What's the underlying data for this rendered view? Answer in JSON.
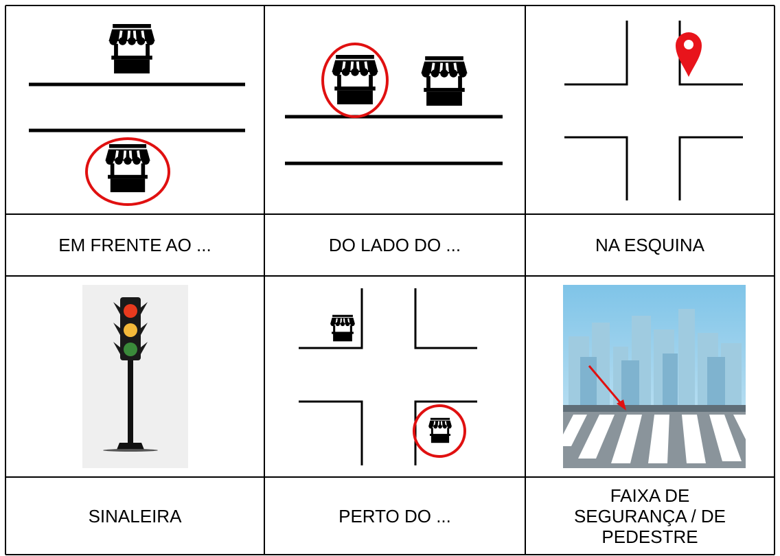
{
  "table": {
    "rows": [
      [
        "EM FRENTE AO ...",
        "DO LADO DO ...",
        "NA ESQUINA"
      ],
      [
        "SINALEIRA",
        "PERTO DO ...",
        "FAIXA DE SEGURANÇA / DE PEDESTRE"
      ]
    ]
  }
}
